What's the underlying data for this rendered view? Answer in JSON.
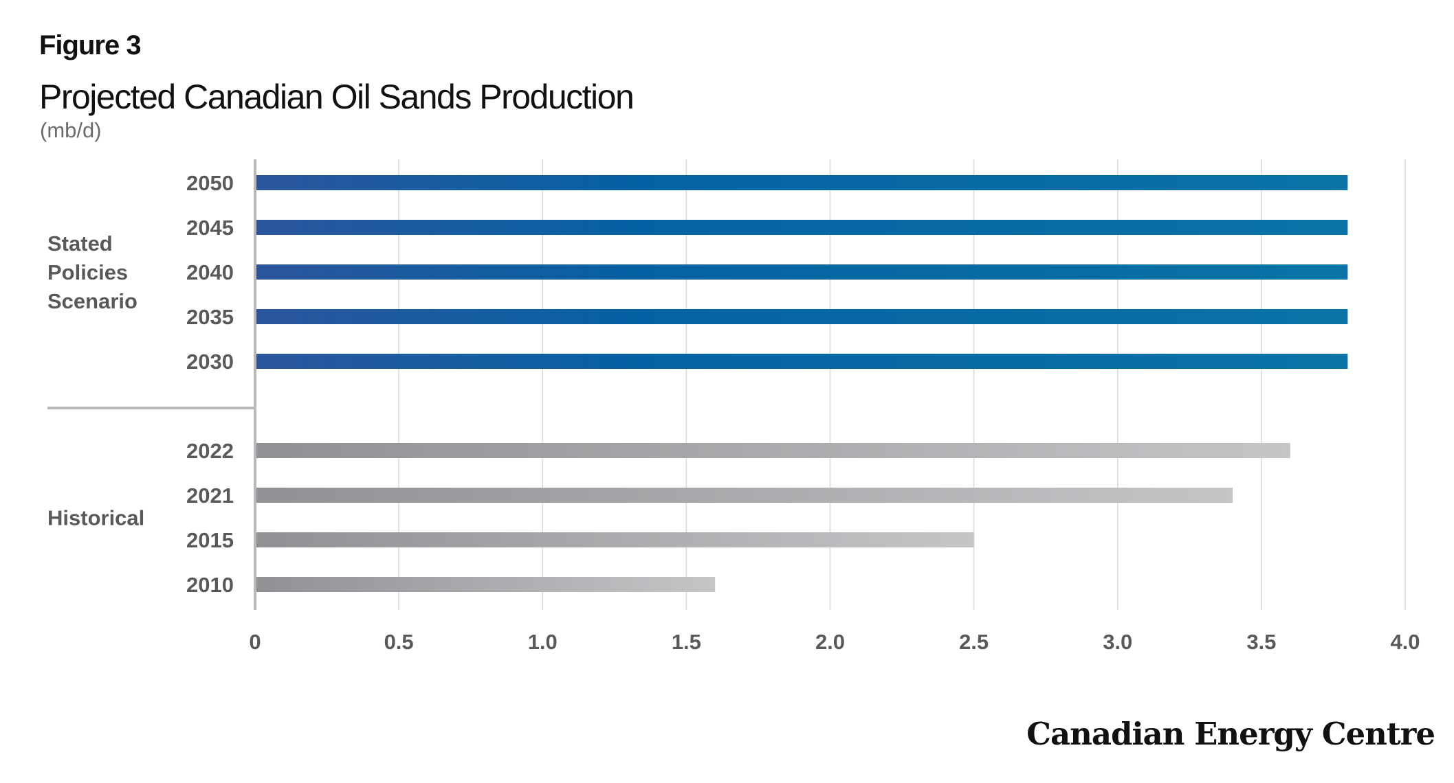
{
  "figure_label": "Figure 3",
  "title": "Projected Canadian Oil Sands Production",
  "unit": "(mb/d)",
  "brand": "Canadian Energy Centre",
  "colors": {
    "projected_start": "#2a559c",
    "projected_mid": "#0561a3",
    "projected_end": "#0b73a6",
    "historical_start": "#8f9194",
    "historical_end": "#c4c5c7",
    "grid": "#d9d9d9",
    "axis": "#b9b9b9",
    "tick_text": "#58595b"
  },
  "chart_data": {
    "type": "bar",
    "orientation": "horizontal",
    "xlim": [
      0,
      4.0
    ],
    "x_ticks": [
      "0",
      "0.5",
      "1.0",
      "1.5",
      "2.0",
      "2.5",
      "3.0",
      "3.5",
      "4.0"
    ],
    "grid": true,
    "groups": [
      {
        "label": "Stated Policies Scenario",
        "label_lines": [
          "Stated",
          "Policies",
          "Scenario"
        ],
        "style": "projected",
        "categories": [
          "2050",
          "2045",
          "2040",
          "2035",
          "2030"
        ],
        "values": [
          3.8,
          3.8,
          3.8,
          3.8,
          3.8
        ]
      },
      {
        "label": "Historical",
        "label_lines": [
          "Historical"
        ],
        "style": "historical",
        "categories": [
          "2022",
          "2021",
          "2015",
          "2010"
        ],
        "values": [
          3.6,
          3.4,
          2.5,
          1.6
        ]
      }
    ]
  }
}
